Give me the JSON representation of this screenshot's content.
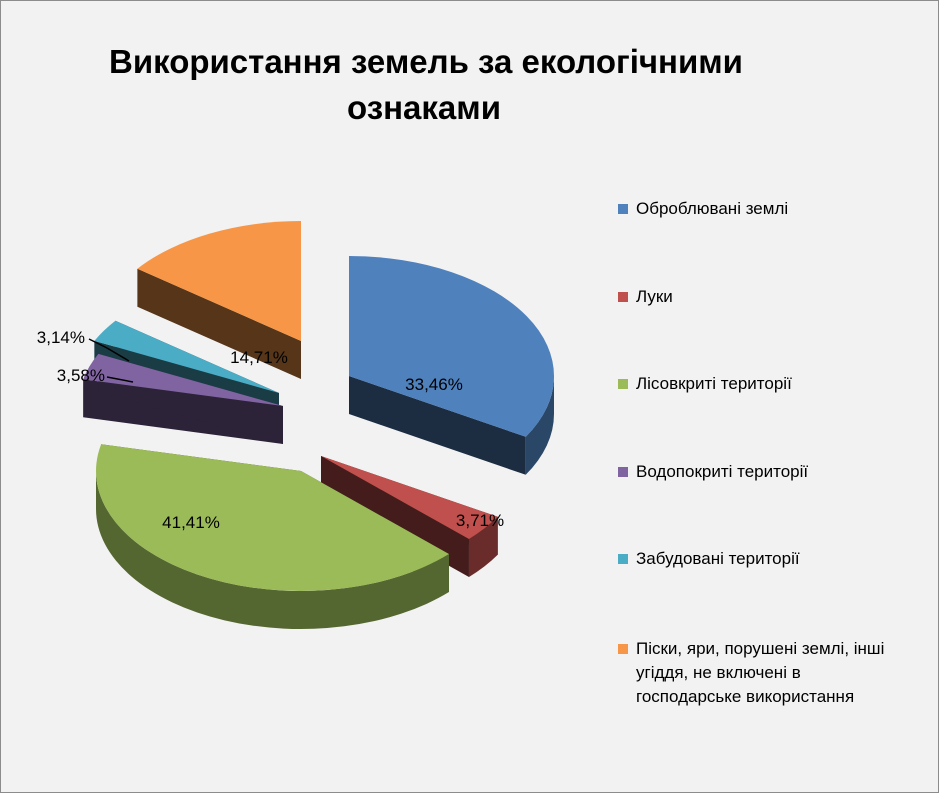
{
  "chart_data": {
    "type": "pie",
    "title_lines": [
      "Використання земель за екологічними",
      "ознаками"
    ],
    "legend_position": "right",
    "series": [
      {
        "name": "Оброблювані землі",
        "value": 33.46,
        "label": "33,46%",
        "color": "#4f81bd"
      },
      {
        "name": "Луки",
        "value": 3.71,
        "label": "3,71%",
        "color": "#c0504d"
      },
      {
        "name": "Лісовкриті території",
        "value": 41.41,
        "label": "41,41%",
        "color": "#9bbb59"
      },
      {
        "name": "Водопокриті території",
        "value": 3.58,
        "label": "3,58%",
        "color": "#8064a2"
      },
      {
        "name": "Забудовані території",
        "value": 3.14,
        "label": "3,14%",
        "color": "#4bacc6"
      },
      {
        "name": "Піски, яри, порушені землі, інші угіддя, не включені в господарське використання",
        "value": 14.71,
        "label": "14,71%",
        "color": "#f79646"
      }
    ],
    "legend_lines": [
      [
        "Оброблювані землі"
      ],
      [
        "Луки"
      ],
      [
        "Лісовкриті території"
      ],
      [
        "Водопокриті території"
      ],
      [
        "Забудовані території"
      ],
      [
        "Піски, яри, порушені землі, інші",
        "угіддя, не включені в",
        "господарське використання"
      ]
    ]
  }
}
